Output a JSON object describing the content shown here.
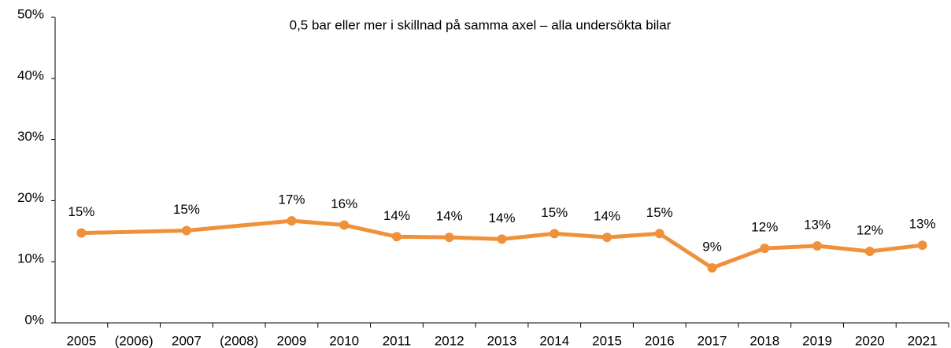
{
  "chart_data": {
    "type": "line",
    "title": "0,5 bar eller mer i skillnad på samma axel – alla undersökta bilar",
    "x": [
      2005,
      2007,
      2009,
      2010,
      2011,
      2012,
      2013,
      2014,
      2015,
      2016,
      2017,
      2018,
      2019,
      2020,
      2021
    ],
    "series": [
      {
        "color": "#f0913a",
        "values": [
          14.7,
          15.1,
          16.7,
          16.0,
          14.1,
          14.0,
          13.7,
          14.6,
          14.0,
          14.6,
          9.0,
          12.2,
          12.6,
          11.7,
          12.7
        ],
        "value_labels": [
          "15%",
          "15%",
          "17%",
          "16%",
          "14%",
          "14%",
          "14%",
          "15%",
          "14%",
          "15%",
          "9%",
          "12%",
          "13%",
          "12%",
          "13%"
        ]
      }
    ],
    "xlim": [
      2004.5,
      2021.5
    ],
    "xticks": [
      {
        "value": 2005,
        "label": "2005"
      },
      {
        "value": 2006,
        "label": "(2006)"
      },
      {
        "value": 2007,
        "label": "2007"
      },
      {
        "value": 2008,
        "label": "(2008)"
      },
      {
        "value": 2009,
        "label": "2009"
      },
      {
        "value": 2010,
        "label": "2010"
      },
      {
        "value": 2011,
        "label": "2011"
      },
      {
        "value": 2012,
        "label": "2012"
      },
      {
        "value": 2013,
        "label": "2013"
      },
      {
        "value": 2014,
        "label": "2014"
      },
      {
        "value": 2015,
        "label": "2015"
      },
      {
        "value": 2016,
        "label": "2016"
      },
      {
        "value": 2017,
        "label": "2017"
      },
      {
        "value": 2018,
        "label": "2018"
      },
      {
        "value": 2019,
        "label": "2019"
      },
      {
        "value": 2020,
        "label": "2020"
      },
      {
        "value": 2021,
        "label": "2021"
      }
    ],
    "ylim": [
      0,
      50
    ],
    "yticks": [
      {
        "value": 0,
        "label": "0%"
      },
      {
        "value": 10,
        "label": "10%"
      },
      {
        "value": 20,
        "label": "20%"
      },
      {
        "value": 30,
        "label": "30%"
      },
      {
        "value": 40,
        "label": "40%"
      },
      {
        "value": 50,
        "label": "50%"
      }
    ]
  }
}
